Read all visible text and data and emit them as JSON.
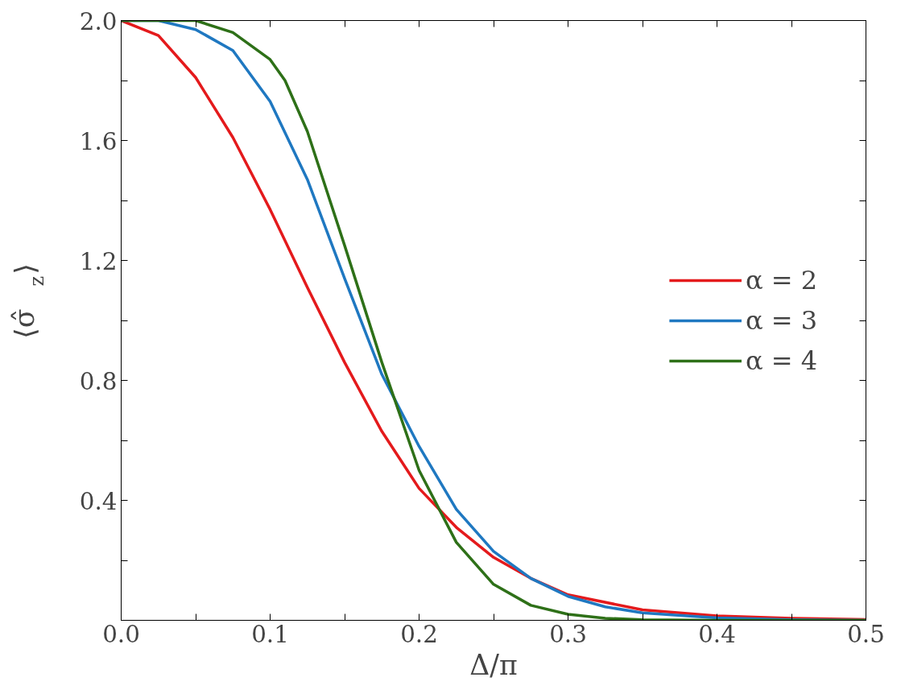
{
  "chart_data": {
    "type": "line",
    "xlabel": "Δ/π",
    "ylabel": "⟨σ̂$_{z}$⟩",
    "xlim": [
      0,
      0.5
    ],
    "ylim": [
      0,
      2.0
    ],
    "xticks": [
      {
        "value": 0,
        "label": "0.0"
      },
      {
        "value": 0.05,
        "label": null
      },
      0.1,
      {
        "value": 0.15,
        "label": null
      },
      0.2,
      {
        "value": 0.25,
        "label": null
      },
      0.3,
      {
        "value": 0.35,
        "label": null
      },
      0.4,
      {
        "value": 0.45,
        "label": null
      },
      0.5
    ],
    "yticks": [
      {
        "value": 0.2,
        "label": null
      },
      0.4,
      {
        "value": 0.6,
        "label": null
      },
      0.8,
      {
        "value": 1.0,
        "label": null
      },
      1.2,
      {
        "value": 1.4,
        "label": null
      },
      1.6,
      {
        "value": 1.8,
        "label": null
      },
      {
        "value": 2.0,
        "label": "2.0"
      }
    ],
    "grid": false,
    "legend": "right",
    "line_style": "solid",
    "marker": "none",
    "series": [
      {
        "name": "α = 2",
        "color": "#e41a1c",
        "x": [
          0,
          0.025,
          0.05,
          0.075,
          0.1,
          0.125,
          0.15,
          0.175,
          0.2,
          0.225,
          0.25,
          0.275,
          0.3,
          0.35,
          0.4,
          0.45,
          0.5
        ],
        "values": [
          2.0,
          1.95,
          1.81,
          1.61,
          1.37,
          1.11,
          0.86,
          0.63,
          0.44,
          0.31,
          0.21,
          0.14,
          0.085,
          0.035,
          0.015,
          0.007,
          0.003
        ]
      },
      {
        "name": "α = 3",
        "color": "#1f78c1",
        "x": [
          0,
          0.025,
          0.05,
          0.075,
          0.1,
          0.125,
          0.15,
          0.175,
          0.2,
          0.225,
          0.25,
          0.275,
          0.3,
          0.325,
          0.35,
          0.4,
          0.45,
          0.5
        ],
        "values": [
          2.0,
          2.0,
          1.97,
          1.9,
          1.73,
          1.47,
          1.14,
          0.82,
          0.58,
          0.37,
          0.23,
          0.14,
          0.08,
          0.045,
          0.025,
          0.008,
          0.002,
          0.0
        ]
      },
      {
        "name": "α = 4",
        "color": "#2e7018",
        "x": [
          0,
          0.025,
          0.05,
          0.075,
          0.1,
          0.11,
          0.125,
          0.15,
          0.175,
          0.2,
          0.225,
          0.25,
          0.275,
          0.3,
          0.325,
          0.35,
          0.4,
          0.5
        ],
        "values": [
          2.0,
          2.0,
          2.0,
          1.96,
          1.87,
          1.8,
          1.63,
          1.25,
          0.86,
          0.5,
          0.26,
          0.12,
          0.05,
          0.02,
          0.007,
          0.002,
          0.0,
          0.0
        ]
      }
    ]
  }
}
